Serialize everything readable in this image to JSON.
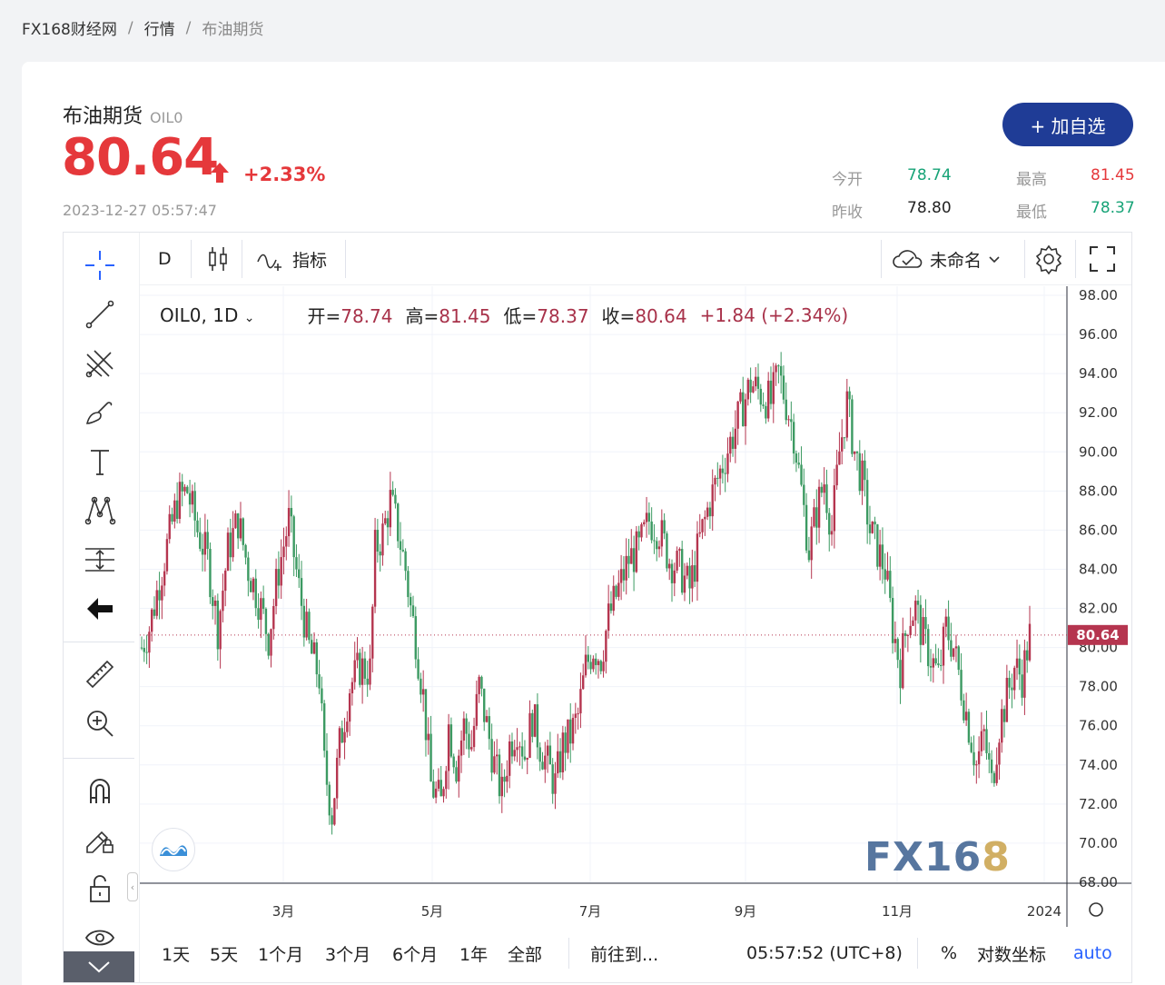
{
  "breadcrumb": {
    "items": [
      "FX168财经网",
      "行情",
      "布油期货"
    ],
    "sep": "/"
  },
  "instrument": {
    "name": "布油期货",
    "code": "OIL0",
    "price": "80.64",
    "change_pct": "+2.33%",
    "timestamp": "2023-12-27 05:57:47",
    "add_label": "+ 加自选"
  },
  "stats": {
    "open_label": "今开",
    "open": "78.74",
    "high_label": "最高",
    "high": "81.45",
    "prev_label": "昨收",
    "prev": "78.80",
    "low_label": "最低",
    "low": "78.37"
  },
  "toolbar": {
    "interval": "D",
    "indicator_label": "指标",
    "layout_name": "未命名"
  },
  "legend": {
    "symbol": "OIL0, 1D",
    "open_label": "开=",
    "open": "78.74",
    "high_label": "高=",
    "high": "81.45",
    "low_label": "低=",
    "low": "78.37",
    "close_label": "收=",
    "close": "80.64",
    "change": "+1.84 (+2.34%)"
  },
  "bottom": {
    "ranges": [
      "1天",
      "5天",
      "1个月",
      "3个月",
      "6个月",
      "1年",
      "全部"
    ],
    "goto_label": "前往到...",
    "clock": "05:57:52 (UTC+8)",
    "pct_label": "%",
    "log_label": "对数坐标",
    "auto_label": "auto"
  },
  "watermark": "FX168",
  "colors": {
    "up": "#b5354f",
    "down": "#3c9a62",
    "accent": "#1f3c96",
    "price_red": "#e5383b",
    "stat_green": "#17a377"
  },
  "chart_data": {
    "type": "candlestick",
    "ylim": [
      68,
      98
    ],
    "y_ticks": [
      "98.00",
      "96.00",
      "94.00",
      "92.00",
      "90.00",
      "88.00",
      "86.00",
      "84.00",
      "82.00",
      "80.00",
      "78.00",
      "76.00",
      "74.00",
      "72.00",
      "70.00",
      "68.00"
    ],
    "x_ticks": [
      "3月",
      "5月",
      "7月",
      "9月",
      "11月",
      "2024"
    ],
    "last_price_label": "80.64",
    "last_price": 80.64,
    "close_path": [
      [
        0,
        80
      ],
      [
        3,
        81
      ],
      [
        8,
        84
      ],
      [
        14,
        87.5
      ],
      [
        18,
        88
      ],
      [
        22,
        86
      ],
      [
        26,
        84.5
      ],
      [
        30,
        81
      ],
      [
        34,
        85
      ],
      [
        38,
        86.5
      ],
      [
        42,
        84
      ],
      [
        46,
        82.5
      ],
      [
        50,
        80.5
      ],
      [
        54,
        84
      ],
      [
        58,
        86.5
      ],
      [
        62,
        83
      ],
      [
        66,
        80
      ],
      [
        70,
        78.5
      ],
      [
        72,
        74
      ],
      [
        75,
        71.5
      ],
      [
        78,
        75
      ],
      [
        82,
        78
      ],
      [
        86,
        79
      ],
      [
        90,
        78.8
      ],
      [
        92,
        85
      ],
      [
        95,
        85.8
      ],
      [
        98,
        87.5
      ],
      [
        101,
        86
      ],
      [
        104,
        84
      ],
      [
        106,
        82
      ],
      [
        108,
        80.5
      ],
      [
        111,
        77.5
      ],
      [
        114,
        73
      ],
      [
        118,
        72
      ],
      [
        121,
        76
      ],
      [
        124,
        74
      ],
      [
        127,
        76
      ],
      [
        130,
        75
      ],
      [
        133,
        78
      ],
      [
        136,
        76
      ],
      [
        139,
        74
      ],
      [
        142,
        72.5
      ],
      [
        145,
        75
      ],
      [
        148,
        76
      ],
      [
        151,
        74.5
      ],
      [
        154,
        76.5
      ],
      [
        157,
        75
      ],
      [
        160,
        74
      ],
      [
        163,
        73
      ],
      [
        166,
        75
      ],
      [
        169,
        75.5
      ],
      [
        172,
        76.5
      ],
      [
        175,
        79
      ],
      [
        178,
        80
      ],
      [
        181,
        79.5
      ],
      [
        184,
        81.5
      ],
      [
        188,
        83
      ],
      [
        192,
        84.5
      ],
      [
        196,
        85
      ],
      [
        200,
        86.5
      ],
      [
        204,
        86
      ],
      [
        208,
        84.5
      ],
      [
        212,
        84
      ],
      [
        216,
        83
      ],
      [
        220,
        85.5
      ],
      [
        224,
        87.5
      ],
      [
        228,
        89
      ],
      [
        232,
        90.5
      ],
      [
        236,
        92
      ],
      [
        240,
        93.5
      ],
      [
        244,
        93
      ],
      [
        248,
        92.5
      ],
      [
        251,
        94
      ],
      [
        254,
        92.5
      ],
      [
        257,
        91
      ],
      [
        260,
        88
      ],
      [
        263,
        85
      ],
      [
        266,
        87
      ],
      [
        269,
        88.5
      ],
      [
        272,
        86
      ],
      [
        275,
        90
      ],
      [
        278,
        92.5
      ],
      [
        281,
        90
      ],
      [
        284,
        88.5
      ],
      [
        287,
        86
      ],
      [
        290,
        85
      ],
      [
        293,
        84
      ],
      [
        296,
        81
      ],
      [
        299,
        79
      ],
      [
        302,
        81.5
      ],
      [
        305,
        82
      ],
      [
        308,
        80.5
      ],
      [
        311,
        79.5
      ],
      [
        314,
        78.5
      ],
      [
        317,
        81
      ],
      [
        320,
        80
      ],
      [
        323,
        78
      ],
      [
        326,
        76
      ],
      [
        329,
        74
      ],
      [
        332,
        75.5
      ],
      [
        335,
        73
      ],
      [
        338,
        76
      ],
      [
        341,
        77.5
      ],
      [
        344,
        79
      ],
      [
        347,
        78.5
      ],
      [
        350,
        80.6
      ]
    ],
    "n": 351
  }
}
